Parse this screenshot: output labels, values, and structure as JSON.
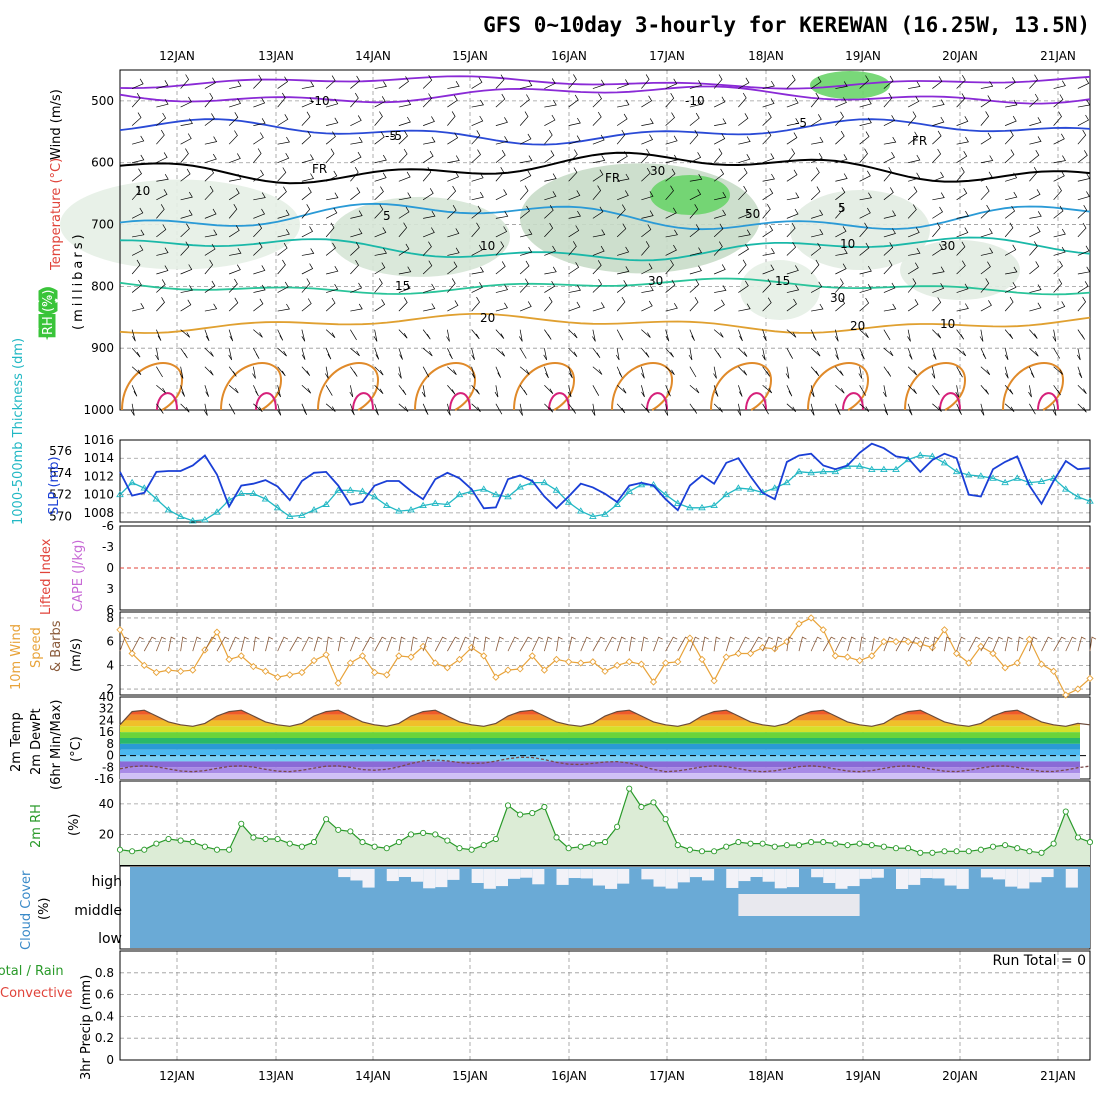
{
  "title": "GFS 0~10day 3-hourly for KEREWAN (16.25W, 13.5N)",
  "colors": {
    "wind_barb": "#000000",
    "slp": "#1a3fd6",
    "thickness": "#22b8c4",
    "wind10": "#e8a33a",
    "barb10": "#8a5a3a",
    "rh2m": "#2a9a2a",
    "cloud": "#6aaad6",
    "dewpt": "#7a4a4a",
    "grid": "#999999"
  },
  "x_axis": {
    "day_labels": [
      "12JAN",
      "13JAN",
      "14JAN",
      "15JAN",
      "16JAN",
      "17JAN",
      "18JAN",
      "19JAN",
      "20JAN",
      "21JAN"
    ],
    "steps": 81,
    "start_offset_hours": 0,
    "step_hours": 3
  },
  "panels": {
    "upper": {
      "ylabel_wind": "Wind (m/s)",
      "ylabel_temp": "Temperature (°C)",
      "ylabel_rh": "RH (%)",
      "ylabel_p": "(millibars)",
      "y_ticks": [
        "500",
        "600",
        "700",
        "800",
        "900",
        "1000"
      ],
      "contour_labels": [
        "-10",
        "-10",
        "-5",
        "-5",
        "-5",
        "FR",
        "FR",
        "FR",
        "5",
        "5",
        "10",
        "10",
        "15",
        "15",
        "20",
        "20"
      ],
      "rh_labels": [
        "10",
        "30",
        "30",
        "50",
        "30",
        "30",
        "10"
      ]
    },
    "slp": {
      "ylabel_slp": "SLP (mb)",
      "ylabel_thk": "1000-500mb Thickness (dm)",
      "left_ticks": [
        "576",
        "574",
        "572",
        "570"
      ],
      "right_ticks": [
        "1016",
        "1014",
        "1012",
        "1010",
        "1008"
      ]
    },
    "cape": {
      "ylabel_li": "Lifted Index",
      "ylabel_cape": "CAPE (J/kg)",
      "ticks": [
        "-6",
        "-3",
        "0",
        "3",
        "6"
      ]
    },
    "wind10": {
      "ylabel": "10m Wind Speed & Barbs (m/s)",
      "ylabel_a": "10m Wind",
      "ylabel_b": "Speed",
      "ylabel_c": "& Barbs",
      "ylabel_u": "(m/s)",
      "ticks": [
        "8",
        "6",
        "4",
        "2"
      ]
    },
    "temp": {
      "ylabel_a": "2m Temp",
      "ylabel_b": "2m DewPt",
      "ylabel_c": "(6hr Min/Max)",
      "ylabel_u": "(°C)",
      "ticks": [
        "40",
        "32",
        "24",
        "16",
        "8",
        "0",
        "-8",
        "-16"
      ]
    },
    "rh2m": {
      "ylabel": "2m RH",
      "ylabel_u": "(%)",
      "ticks": [
        "40",
        "20"
      ]
    },
    "cloud": {
      "ylabel": "Cloud Cover",
      "ylabel_u": "(%)",
      "levels": [
        "high",
        "middle",
        "low"
      ]
    },
    "precip": {
      "ylabel_a": "Total / Rain",
      "ylabel_b": "Convective",
      "ylabel_c": "3hr Precip (mm)",
      "ticks": [
        "0.8",
        "0.6",
        "0.4",
        "0.2",
        "0"
      ],
      "run_total": "Run Total = 0"
    }
  },
  "chart_data": [
    {
      "type": "line",
      "title": "SLP (mb)",
      "ylim": [
        1007,
        1016
      ],
      "series": [
        {
          "name": "SLP (mb)",
          "values": [
            1012.5,
            1009.9,
            1010.2,
            1012.5,
            1012.6,
            1012.6,
            1013.2,
            1014.3,
            1012.2,
            1008.7,
            1011.0,
            1011.2,
            1011.6,
            1010.9,
            1009.4,
            1011.5,
            1012.4,
            1012.5,
            1011.0,
            1008.9,
            1009.2,
            1011.0,
            1011.5,
            1011.5,
            1010.4,
            1009.5,
            1011.7,
            1012.4,
            1011.8,
            1010.6,
            1008.5,
            1008.6,
            1011.7,
            1012.1,
            1011.5,
            1009.8,
            1008.5,
            1009.8,
            1011.2,
            1010.8,
            1010.1,
            1009.2,
            1011.0,
            1011.3,
            1011.0,
            1009.5,
            1008.3,
            1011.0,
            1012.1,
            1011.2,
            1013.5,
            1014.0,
            1012.0,
            1010.2,
            1009.5,
            1013.6,
            1014.3,
            1014.5,
            1013.2,
            1012.8,
            1013.2,
            1014.6,
            1015.6,
            1015.1,
            1014.2,
            1014.0,
            1012.5,
            1013.8,
            1014.5,
            1014.0,
            1010.0,
            1009.8,
            1012.8,
            1013.6,
            1014.2,
            1011.0,
            1009.0,
            1011.5,
            1013.7,
            1012.8,
            1012.9
          ]
        }
      ]
    },
    {
      "type": "line",
      "title": "1000-500mb Thickness (dm)",
      "ylim": [
        569.5,
        577
      ],
      "series": [
        {
          "name": "1000-500mb Thickness (dm)",
          "values": [
            572.0,
            573.1,
            572.6,
            571.6,
            570.6,
            570.0,
            569.6,
            569.7,
            570.4,
            571.5,
            572.1,
            572.1,
            571.6,
            570.8,
            570.0,
            570.1,
            570.6,
            571.1,
            572.4,
            572.4,
            572.3,
            571.8,
            571.0,
            570.5,
            570.6,
            571.0,
            571.2,
            571.1,
            572.0,
            572.3,
            572.5,
            572.0,
            571.8,
            572.7,
            573.1,
            573.1,
            572.4,
            571.3,
            570.5,
            570.0,
            570.2,
            571.1,
            572.3,
            572.9,
            572.9,
            572.0,
            571.2,
            570.8,
            570.8,
            571.0,
            572.0,
            572.6,
            572.5,
            572.2,
            572.6,
            573.1,
            574.1,
            574.0,
            574.1,
            574.1,
            574.6,
            574.6,
            574.3,
            574.3,
            574.3,
            575.2,
            575.6,
            575.5,
            574.9,
            574.1,
            573.8,
            573.7,
            573.5,
            573.1,
            573.5,
            573.1,
            573.2,
            573.5,
            572.5,
            571.8,
            571.4
          ]
        }
      ]
    },
    {
      "type": "line",
      "title": "10m Wind Speed (m/s)",
      "ylim": [
        1.5,
        8.5
      ],
      "series": [
        {
          "name": "10m Wind Speed (m/s)",
          "values": [
            7.0,
            5.0,
            4.0,
            3.4,
            3.6,
            3.5,
            3.6,
            5.3,
            6.8,
            4.5,
            4.8,
            3.9,
            3.5,
            3.0,
            3.2,
            3.4,
            4.4,
            4.9,
            2.5,
            4.2,
            4.8,
            3.4,
            3.2,
            4.8,
            4.7,
            5.6,
            4.2,
            3.8,
            4.5,
            5.5,
            4.8,
            3.0,
            3.6,
            3.7,
            4.8,
            3.6,
            4.5,
            4.3,
            4.2,
            4.3,
            3.5,
            4.0,
            4.3,
            4.1,
            2.6,
            4.2,
            4.3,
            6.3,
            4.5,
            2.7,
            4.7,
            5.0,
            5.0,
            5.5,
            5.4,
            6.0,
            7.5,
            8.0,
            7.0,
            4.8,
            4.7,
            4.4,
            4.8,
            6.0,
            6.0,
            6.0,
            5.8,
            5.5,
            7.0,
            5.0,
            4.2,
            5.6,
            5.0,
            3.8,
            4.2,
            6.2,
            4.1,
            3.5,
            1.5,
            2.0,
            2.9
          ]
        }
      ]
    },
    {
      "type": "area",
      "title": "2m Temp (°C)",
      "ylim": [
        -16,
        40
      ],
      "series": [
        {
          "name": "2m Temp",
          "values": [
            21,
            30,
            31,
            27,
            23,
            21,
            20,
            22,
            27,
            30,
            31,
            27,
            23,
            21,
            20,
            22,
            27,
            30,
            31,
            27,
            23,
            21,
            20,
            22,
            27,
            30,
            31,
            27,
            23,
            21,
            20,
            22,
            27,
            30,
            31,
            27,
            23,
            21,
            20,
            22,
            27,
            30,
            31,
            27,
            23,
            21,
            20,
            22,
            27,
            30,
            31,
            27,
            23,
            21,
            20,
            22,
            27,
            30,
            31,
            27,
            23,
            21,
            20,
            22,
            27,
            30,
            31,
            27,
            23,
            21,
            20,
            22,
            27,
            30,
            31,
            27,
            23,
            21,
            20,
            22,
            21
          ]
        }
      ]
    },
    {
      "type": "line",
      "title": "2m RH (%)",
      "ylim": [
        0,
        55
      ],
      "series": [
        {
          "name": "2m RH (%)",
          "values": [
            10,
            9,
            10,
            14,
            17,
            16,
            15,
            12,
            10,
            10,
            27,
            18,
            17,
            17,
            14,
            12,
            15,
            30,
            23,
            22,
            15,
            12,
            11,
            15,
            20,
            21,
            20,
            16,
            11,
            10,
            13,
            17,
            39,
            33,
            34,
            38,
            18,
            11,
            12,
            14,
            15,
            25,
            50,
            38,
            41,
            30,
            13,
            10,
            9,
            9,
            12,
            15,
            14,
            14,
            12,
            13,
            13,
            15,
            15,
            14,
            13,
            14,
            13,
            12,
            11,
            11,
            8,
            8,
            9,
            9,
            9,
            10,
            12,
            13,
            11,
            9,
            8,
            14,
            35,
            18,
            15
          ]
        }
      ]
    },
    {
      "type": "bar",
      "title": "3hr Precip (mm)",
      "ylim": [
        0,
        1
      ],
      "series": [
        {
          "name": "3hr Precip (mm)",
          "values": [
            0,
            0,
            0,
            0,
            0,
            0,
            0,
            0,
            0,
            0,
            0,
            0,
            0,
            0,
            0,
            0,
            0,
            0,
            0,
            0,
            0,
            0,
            0,
            0,
            0,
            0,
            0,
            0,
            0,
            0,
            0,
            0,
            0,
            0,
            0,
            0,
            0,
            0,
            0,
            0,
            0,
            0,
            0,
            0,
            0,
            0,
            0,
            0,
            0,
            0,
            0,
            0,
            0,
            0,
            0,
            0,
            0,
            0,
            0,
            0,
            0,
            0,
            0,
            0,
            0,
            0,
            0,
            0,
            0,
            0,
            0,
            0,
            0,
            0,
            0,
            0,
            0,
            0,
            0,
            0,
            0
          ]
        }
      ]
    }
  ]
}
